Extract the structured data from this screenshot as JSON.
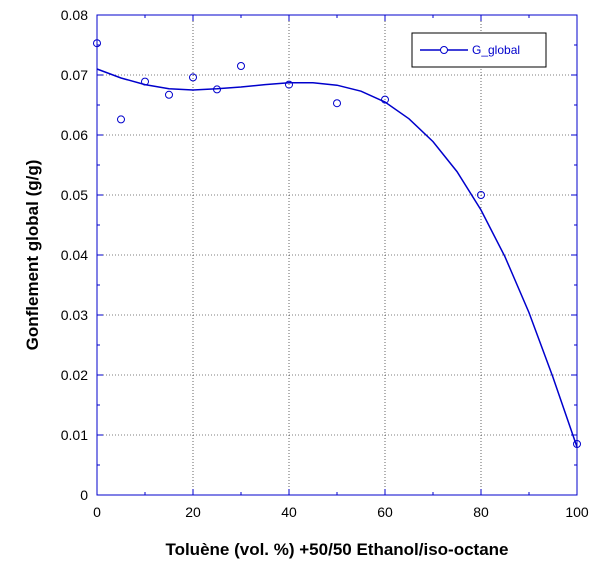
{
  "chart_data": {
    "type": "scatter",
    "xlabel": "Toluène (vol. %) +50/50 Ethanol/iso-octane",
    "ylabel": "Gonflement global (g/g)",
    "xlim": [
      0,
      100
    ],
    "ylim": [
      0,
      0.08
    ],
    "x_ticks": [
      "0",
      "20",
      "40",
      "60",
      "80",
      "100"
    ],
    "y_ticks": [
      "0",
      "0.01",
      "0.02",
      "0.03",
      "0.04",
      "0.05",
      "0.06",
      "0.07",
      "0.08"
    ],
    "grid": true,
    "legend_position": "top-right",
    "series": [
      {
        "name": "G_global",
        "color": "#0000cc",
        "marker": "open-circle",
        "x": [
          0,
          5,
          10,
          15,
          20,
          25,
          30,
          40,
          50,
          60,
          80,
          100
        ],
        "y": [
          0.0753,
          0.0626,
          0.0689,
          0.0667,
          0.0696,
          0.0676,
          0.0715,
          0.0684,
          0.0653,
          0.0659,
          0.05,
          0.0085
        ]
      }
    ],
    "fit_curve": {
      "color": "#0000cc",
      "x": [
        0,
        5,
        10,
        15,
        20,
        25,
        30,
        35,
        40,
        45,
        50,
        55,
        60,
        65,
        70,
        75,
        80,
        85,
        90,
        95,
        100
      ],
      "y": [
        0.071,
        0.0695,
        0.0684,
        0.0677,
        0.0675,
        0.0677,
        0.068,
        0.0684,
        0.0687,
        0.0687,
        0.0683,
        0.0673,
        0.0655,
        0.0627,
        0.0589,
        0.0539,
        0.0475,
        0.0397,
        0.0304,
        0.0196,
        0.008
      ]
    }
  }
}
